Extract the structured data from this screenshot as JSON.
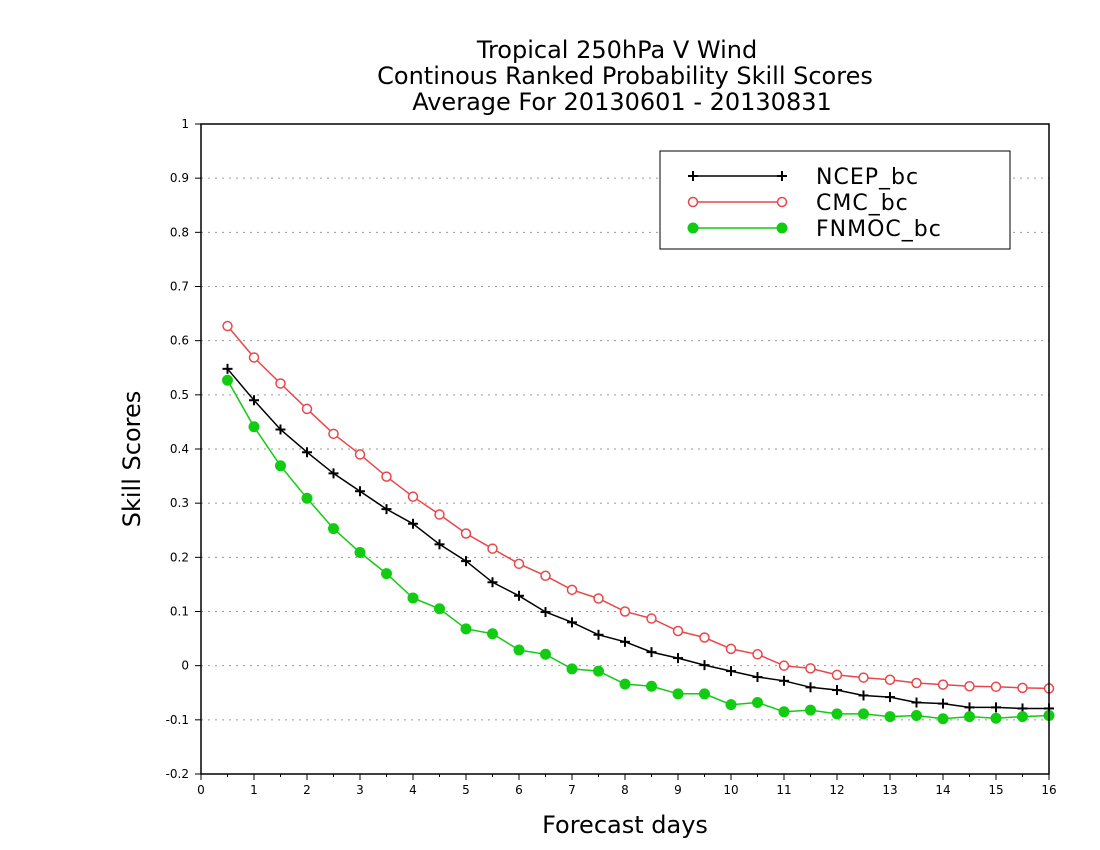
{
  "chart_data": {
    "type": "line",
    "title_lines": [
      "Tropical 250hPa V Wind",
      "Continous Ranked Probability Skill Scores",
      "Average For 20130601 - 20130831"
    ],
    "xlabel": "Forecast days",
    "ylabel": "Skill Scores",
    "xlim": [
      0,
      16
    ],
    "ylim": [
      -0.2,
      1
    ],
    "xticks": [
      "0",
      "1",
      "2",
      "3",
      "4",
      "5",
      "6",
      "7",
      "8",
      "9",
      "10",
      "11",
      "12",
      "13",
      "14",
      "15",
      "16"
    ],
    "yticks": [
      "-0.2",
      "-0.1",
      "0",
      "0.1",
      "0.2",
      "0.3",
      "0.4",
      "0.5",
      "0.6",
      "0.7",
      "0.8",
      "0.9",
      "1"
    ],
    "grid": true,
    "legend_position": "top-right",
    "x": [
      0.5,
      1,
      1.5,
      2,
      2.5,
      3,
      3.5,
      4,
      4.5,
      5,
      5.5,
      6,
      6.5,
      7,
      7.5,
      8,
      8.5,
      9,
      9.5,
      10,
      10.5,
      11,
      11.5,
      12,
      12.5,
      13,
      13.5,
      14,
      14.5,
      15,
      15.5,
      16
    ],
    "series": [
      {
        "name": "NCEP_bc",
        "color": "#000000",
        "marker": "plus",
        "values": [
          0.548,
          0.49,
          0.436,
          0.394,
          0.355,
          0.322,
          0.289,
          0.262,
          0.224,
          0.193,
          0.154,
          0.129,
          0.099,
          0.08,
          0.057,
          0.044,
          0.025,
          0.014,
          0.001,
          -0.01,
          -0.021,
          -0.028,
          -0.04,
          -0.045,
          -0.055,
          -0.058,
          -0.068,
          -0.07,
          -0.077,
          -0.077,
          -0.079,
          -0.079
        ]
      },
      {
        "name": "CMC_bc",
        "color": "#e8474a",
        "marker": "open-circle",
        "values": [
          0.627,
          0.569,
          0.521,
          0.474,
          0.428,
          0.39,
          0.349,
          0.312,
          0.279,
          0.244,
          0.216,
          0.188,
          0.166,
          0.14,
          0.124,
          0.1,
          0.087,
          0.064,
          0.052,
          0.031,
          0.021,
          0,
          -0.005,
          -0.017,
          -0.022,
          -0.026,
          -0.032,
          -0.035,
          -0.038,
          -0.039,
          -0.041,
          -0.042
        ]
      },
      {
        "name": "FNMOC_bc",
        "color": "#11cc11",
        "marker": "filled-circle",
        "values": [
          0.527,
          0.441,
          0.369,
          0.309,
          0.253,
          0.209,
          0.17,
          0.125,
          0.105,
          0.068,
          0.059,
          0.029,
          0.021,
          -0.006,
          -0.01,
          -0.034,
          -0.038,
          -0.052,
          -0.052,
          -0.072,
          -0.068,
          -0.085,
          -0.082,
          -0.089,
          -0.089,
          -0.094,
          -0.092,
          -0.098,
          -0.094,
          -0.097,
          -0.094,
          -0.092
        ]
      }
    ]
  }
}
